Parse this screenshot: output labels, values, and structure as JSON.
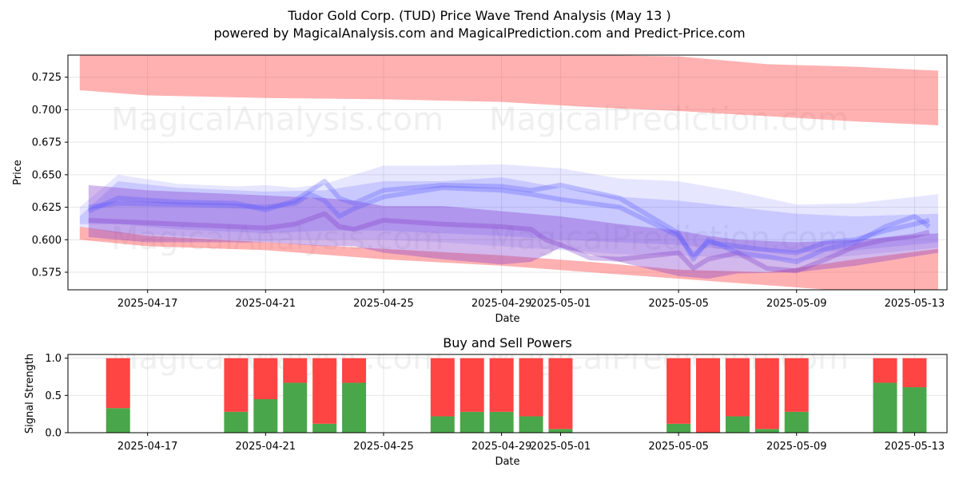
{
  "title_line1": "Tudor Gold Corp. (TUD) Price Wave Trend Analysis (May 13 )",
  "title_line2": "powered by MagicalAnalysis.com and MagicalPrediction.com and Predict-Price.com",
  "watermarks": [
    "MagicalAnalysis.com",
    "MagicalPrediction.com"
  ],
  "colors": {
    "red": "#ff4444",
    "green": "#4aa64a",
    "blue": "#5555ff",
    "purple": "#8844cc",
    "grid": "#e6e6e6"
  },
  "chart_data": [
    {
      "type": "area",
      "title": "",
      "xlabel": "Date",
      "ylabel": "Price",
      "ylim": [
        0.5615,
        0.742
      ],
      "x_tick_labels": [
        "2025-04-17",
        "2025-04-21",
        "2025-04-25",
        "2025-04-29",
        "2025-05-01",
        "2025-05-05",
        "2025-05-09",
        "2025-05-13"
      ],
      "x_tick_days": [
        2,
        6,
        10,
        14,
        16,
        20,
        24,
        28
      ],
      "xlim_days": [
        -0.7,
        29.1
      ],
      "y_ticks": [
        0.575,
        0.6,
        0.625,
        0.65,
        0.675,
        0.7,
        0.725
      ],
      "y_tick_labels": [
        "0.575",
        "0.600",
        "0.625",
        "0.650",
        "0.675",
        "0.700",
        "0.725"
      ],
      "bands": [
        {
          "name": "upper red band",
          "color": "red",
          "opacity": 0.42,
          "x": [
            -0.3,
            2,
            6,
            10,
            14,
            17,
            20,
            23,
            26,
            28.8
          ],
          "upper": [
            0.742,
            0.742,
            0.742,
            0.742,
            0.742,
            0.742,
            0.741,
            0.735,
            0.733,
            0.73
          ],
          "lower": [
            0.715,
            0.711,
            0.709,
            0.708,
            0.706,
            0.702,
            0.699,
            0.695,
            0.691,
            0.688
          ]
        },
        {
          "name": "lower red band",
          "color": "red",
          "opacity": 0.42,
          "x": [
            -0.3,
            2,
            6,
            10,
            14,
            17,
            20,
            23,
            26,
            28.8
          ],
          "upper": [
            0.61,
            0.603,
            0.598,
            0.593,
            0.588,
            0.583,
            0.577,
            0.575,
            0.585,
            0.593
          ],
          "lower": [
            0.6,
            0.595,
            0.592,
            0.585,
            0.58,
            0.575,
            0.57,
            0.565,
            0.56,
            0.56
          ]
        },
        {
          "name": "outer blue band",
          "color": "blue",
          "opacity": 0.15,
          "x": [
            -0.3,
            1,
            3,
            5,
            6,
            7,
            8,
            10,
            12,
            14,
            16,
            18,
            20,
            22,
            24,
            26,
            28.8
          ],
          "upper": [
            0.625,
            0.65,
            0.643,
            0.641,
            0.642,
            0.64,
            0.643,
            0.657,
            0.657,
            0.658,
            0.655,
            0.647,
            0.645,
            0.637,
            0.627,
            0.628,
            0.635
          ],
          "lower": [
            0.61,
            0.605,
            0.603,
            0.6,
            0.599,
            0.6,
            0.6,
            0.6,
            0.598,
            0.595,
            0.592,
            0.589,
            0.588,
            0.586,
            0.584,
            0.588,
            0.594
          ]
        },
        {
          "name": "inner blue band",
          "color": "blue",
          "opacity": 0.2,
          "x": [
            -0.3,
            1,
            3,
            6,
            8,
            10,
            12,
            14,
            16,
            18,
            20,
            22,
            24,
            26,
            28.8
          ],
          "upper": [
            0.618,
            0.645,
            0.64,
            0.637,
            0.638,
            0.645,
            0.645,
            0.648,
            0.64,
            0.633,
            0.63,
            0.625,
            0.62,
            0.618,
            0.62
          ],
          "lower": [
            0.612,
            0.612,
            0.608,
            0.605,
            0.607,
            0.607,
            0.605,
            0.603,
            0.6,
            0.598,
            0.596,
            0.592,
            0.59,
            0.592,
            0.598
          ]
        },
        {
          "name": "purple band",
          "color": "purple",
          "opacity": 0.38,
          "x": [
            0,
            2,
            4,
            6,
            8,
            9,
            10,
            12,
            14,
            15,
            16,
            18,
            20,
            21,
            22,
            24,
            26,
            28.8
          ],
          "upper": [
            0.642,
            0.638,
            0.636,
            0.634,
            0.632,
            0.63,
            0.626,
            0.626,
            0.622,
            0.62,
            0.618,
            0.612,
            0.607,
            0.603,
            0.6,
            0.598,
            0.6,
            0.605
          ],
          "lower": [
            0.602,
            0.598,
            0.598,
            0.598,
            0.595,
            0.595,
            0.59,
            0.585,
            0.581,
            0.583,
            0.594,
            0.583,
            0.572,
            0.57,
            0.574,
            0.575,
            0.58,
            0.59
          ]
        }
      ],
      "wave_lines": [
        {
          "color": "blue",
          "opacity": 0.3,
          "x": [
            0,
            1,
            3,
            5,
            6,
            7,
            7.5,
            8,
            8.5,
            9,
            10,
            12,
            14,
            15,
            16,
            18,
            20,
            20.5,
            21,
            22,
            23,
            24,
            25,
            26,
            27,
            28,
            28.5
          ],
          "y": [
            0.625,
            0.628,
            0.627,
            0.626,
            0.625,
            0.628,
            0.635,
            0.63,
            0.618,
            0.624,
            0.633,
            0.64,
            0.638,
            0.635,
            0.631,
            0.625,
            0.603,
            0.588,
            0.598,
            0.595,
            0.592,
            0.59,
            0.598,
            0.6,
            0.607,
            0.612,
            0.615
          ]
        },
        {
          "color": "blue",
          "opacity": 0.3,
          "x": [
            0,
            1,
            3,
            5,
            6,
            7,
            8,
            8.5,
            9,
            10,
            12,
            14,
            15,
            16,
            18,
            20,
            20.5,
            21,
            22,
            23,
            24,
            25,
            26,
            27,
            28,
            28.5
          ],
          "y": [
            0.622,
            0.632,
            0.629,
            0.628,
            0.623,
            0.63,
            0.645,
            0.632,
            0.628,
            0.638,
            0.642,
            0.641,
            0.638,
            0.642,
            0.632,
            0.605,
            0.585,
            0.6,
            0.59,
            0.587,
            0.583,
            0.593,
            0.598,
            0.61,
            0.618,
            0.61
          ]
        },
        {
          "color": "purple",
          "opacity": 0.35,
          "x": [
            0,
            1,
            3,
            5,
            6,
            7,
            8,
            8.5,
            9,
            10,
            12,
            14,
            15,
            15.5,
            16,
            17,
            18,
            20,
            20.5,
            21,
            22,
            23,
            24,
            25,
            26,
            27,
            28,
            28.5
          ],
          "y": [
            0.615,
            0.614,
            0.612,
            0.61,
            0.609,
            0.612,
            0.62,
            0.61,
            0.608,
            0.615,
            0.612,
            0.61,
            0.608,
            0.6,
            0.596,
            0.586,
            0.585,
            0.59,
            0.578,
            0.585,
            0.59,
            0.578,
            0.576,
            0.585,
            0.595,
            0.6,
            0.603,
            0.606
          ]
        }
      ]
    },
    {
      "type": "bar",
      "title": "Buy and Sell Powers",
      "xlabel": "Date",
      "ylabel": "Signal Strength",
      "ylim": [
        0,
        1.05
      ],
      "y_ticks": [
        0,
        0.5,
        1
      ],
      "y_tick_labels": [
        "0.0",
        "0.5",
        "1.0"
      ],
      "x_tick_labels": [
        "2025-04-17",
        "2025-04-21",
        "2025-04-25",
        "2025-04-29",
        "2025-05-01",
        "2025-05-05",
        "2025-05-09",
        "2025-05-13"
      ],
      "x_tick_days": [
        2,
        6,
        10,
        14,
        16,
        20,
        24,
        28
      ],
      "xlim_days": [
        -0.7,
        29.1
      ],
      "bar_days": [
        1,
        5,
        6,
        7,
        8,
        9,
        12,
        13,
        14,
        15,
        16,
        20,
        21,
        22,
        23,
        24,
        27,
        28
      ],
      "series": [
        {
          "name": "Buy",
          "color": "green",
          "values": [
            0.33,
            0.28,
            0.45,
            0.67,
            0.12,
            0.67,
            0.22,
            0.28,
            0.28,
            0.22,
            0.05,
            0.12,
            0,
            0.22,
            0.05,
            0.28,
            0.67,
            0.61
          ]
        },
        {
          "name": "Sell",
          "color": "red",
          "values": [
            0.67,
            0.72,
            0.55,
            0.33,
            0.88,
            0.33,
            0.78,
            0.72,
            0.72,
            0.78,
            0.95,
            0.88,
            1,
            0.78,
            0.95,
            0.72,
            0.33,
            0.39
          ]
        }
      ]
    }
  ]
}
